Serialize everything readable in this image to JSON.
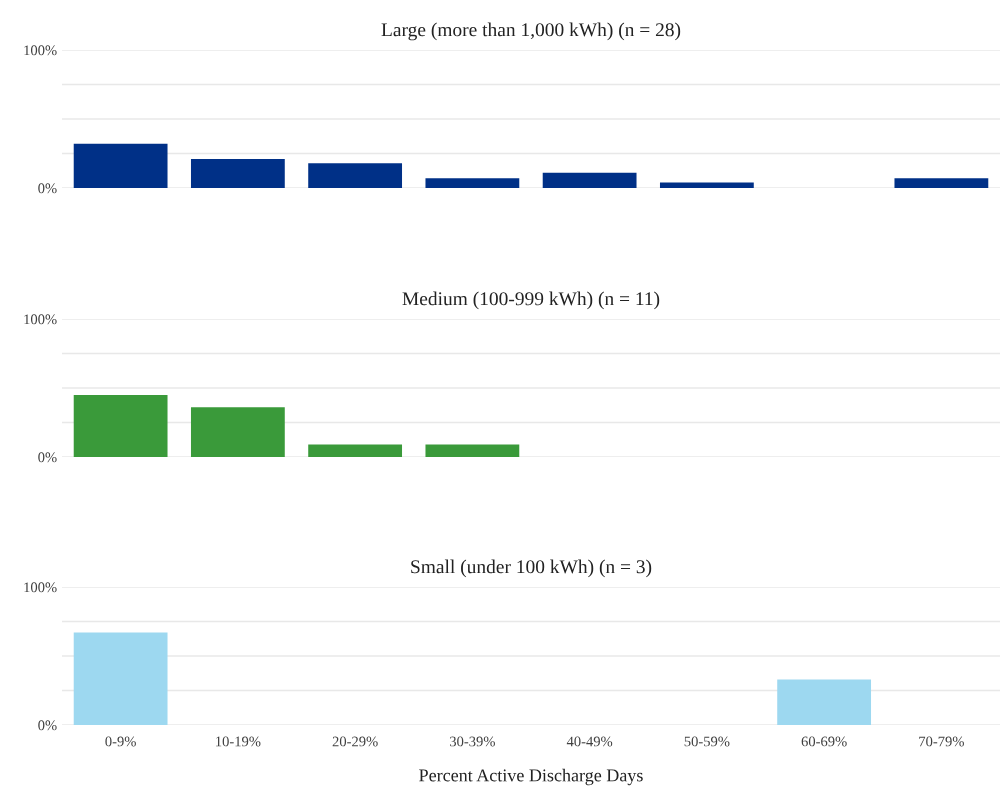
{
  "chart_data": [
    {
      "type": "bar",
      "title": "Large (more than 1,000 kWh) (n = 28)",
      "categories": [
        null,
        null,
        null,
        null,
        null,
        null,
        null,
        null
      ],
      "values": [
        32,
        21,
        18,
        7,
        11,
        4,
        0,
        7
      ],
      "color": "#003087",
      "ylim": [
        0,
        100
      ],
      "yticks": [
        {
          "value": 0,
          "label": "0%"
        },
        {
          "value": 25,
          "label": null
        },
        {
          "value": 50,
          "label": null
        },
        {
          "value": 75,
          "label": null
        },
        {
          "value": 100,
          "label": "100%"
        }
      ],
      "grid": "y",
      "tick_labels": "y"
    },
    {
      "type": "bar",
      "title": "Medium (100-999 kWh) (n = 11)",
      "categories": [
        null,
        null,
        null,
        null,
        null,
        null,
        null,
        null
      ],
      "values": [
        45,
        36,
        9,
        9,
        0,
        0,
        0,
        0
      ],
      "color": "#3a9a3a",
      "ylim": [
        0,
        100
      ],
      "yticks": [
        {
          "value": 0,
          "label": "0%"
        },
        {
          "value": 25,
          "label": null
        },
        {
          "value": 50,
          "label": null
        },
        {
          "value": 75,
          "label": null
        },
        {
          "value": 100,
          "label": "100%"
        }
      ],
      "grid": "y",
      "tick_labels": "y"
    },
    {
      "type": "bar",
      "title": "Small (under 100 kWh) (n = 3)",
      "xlabel": "Percent Active Discharge Days",
      "categories": [
        "0-9%",
        "10-19%",
        "20-29%",
        "30-39%",
        "40-49%",
        "50-59%",
        "60-69%",
        "70-79%"
      ],
      "values": [
        67,
        0,
        0,
        0,
        0,
        0,
        33,
        0
      ],
      "color": "#9dd8f0",
      "ylim": [
        0,
        100
      ],
      "yticks": [
        {
          "value": 0,
          "label": "0%"
        },
        {
          "value": 25,
          "label": null
        },
        {
          "value": 50,
          "label": null
        },
        {
          "value": 75,
          "label": null
        },
        {
          "value": 100,
          "label": "100%"
        }
      ],
      "grid": "y"
    }
  ]
}
